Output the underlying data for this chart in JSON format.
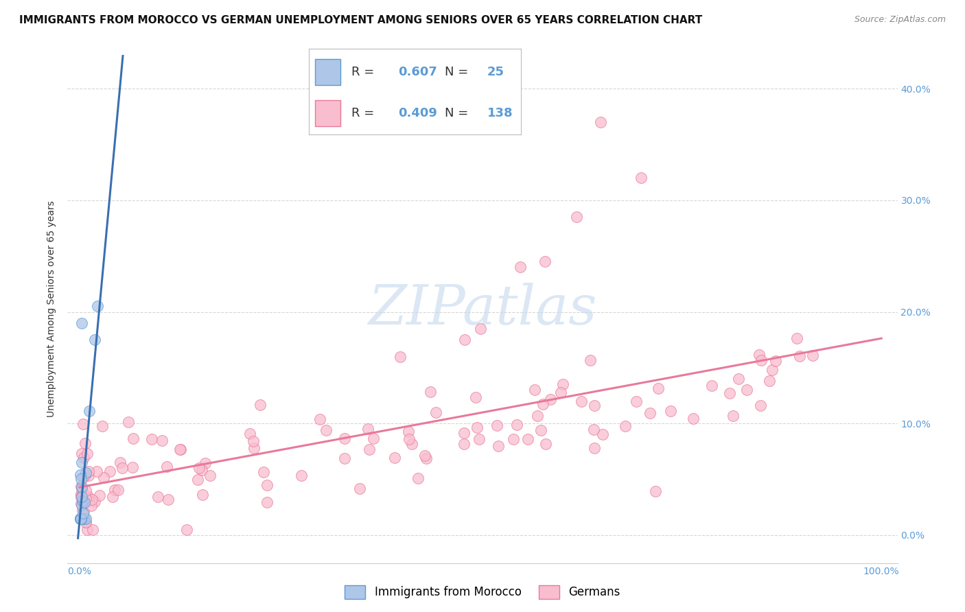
{
  "title": "IMMIGRANTS FROM MOROCCO VS GERMAN UNEMPLOYMENT AMONG SENIORS OVER 65 YEARS CORRELATION CHART",
  "source": "Source: ZipAtlas.com",
  "ylabel": "Unemployment Among Seniors over 65 years",
  "legend_morocco_label": "Immigrants from Morocco",
  "legend_germany_label": "Germans",
  "R_morocco": 0.607,
  "N_morocco": 25,
  "R_germany": 0.409,
  "N_germany": 138,
  "morocco_color": "#aec6e8",
  "morocco_edge_color": "#5b9bd5",
  "morocco_line_color": "#3a6fb0",
  "germany_color": "#f9bdd0",
  "germany_edge_color": "#e8799a",
  "germany_line_color": "#e8799a",
  "grid_color": "#cccccc",
  "watermark_color": "#c5d8ee",
  "background_color": "#ffffff",
  "tick_color": "#5b9bd5",
  "ylabel_color": "#333333",
  "title_color": "#111111",
  "source_color": "#888888",
  "title_fontsize": 11,
  "ylabel_fontsize": 10,
  "tick_fontsize": 10,
  "legend_fontsize": 12,
  "xlim": [
    -0.015,
    1.02
  ],
  "ylim": [
    -0.025,
    0.43
  ],
  "yticks": [
    0.0,
    0.1,
    0.2,
    0.3,
    0.4
  ],
  "xticks": [
    0.0,
    1.0
  ],
  "scatter_size": 130,
  "scatter_alpha": 0.75,
  "scatter_linewidth": 0.7
}
